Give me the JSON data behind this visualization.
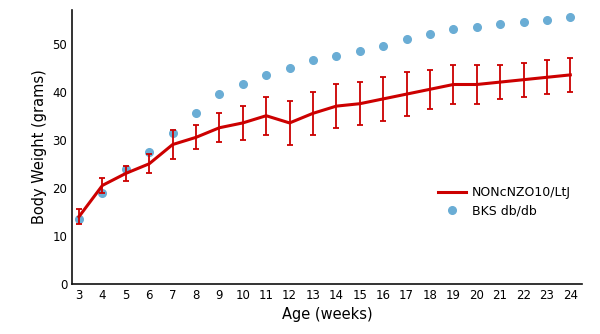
{
  "xlabel": "Age (weeks)",
  "ylabel": "Body Weight (grams)",
  "xlim": [
    2.7,
    24.5
  ],
  "ylim": [
    0,
    57
  ],
  "yticks": [
    0,
    10,
    20,
    30,
    40,
    50
  ],
  "xticks": [
    3,
    4,
    5,
    6,
    7,
    8,
    9,
    10,
    11,
    12,
    13,
    14,
    15,
    16,
    17,
    18,
    19,
    20,
    21,
    22,
    23,
    24
  ],
  "red_x": [
    3,
    4,
    5,
    6,
    7,
    8,
    9,
    10,
    11,
    12,
    13,
    14,
    15,
    16,
    17,
    18,
    19,
    20,
    21,
    22,
    23,
    24
  ],
  "red_y": [
    14.0,
    20.5,
    23.0,
    25.0,
    29.0,
    30.5,
    32.5,
    33.5,
    35.0,
    33.5,
    35.5,
    37.0,
    37.5,
    38.5,
    39.5,
    40.5,
    41.5,
    41.5,
    42.0,
    42.5,
    43.0,
    43.5
  ],
  "red_err_lower": [
    1.5,
    1.5,
    1.5,
    2.0,
    3.0,
    2.5,
    3.0,
    3.5,
    4.0,
    4.5,
    4.5,
    4.5,
    4.5,
    4.5,
    4.5,
    4.0,
    4.0,
    4.0,
    3.5,
    3.5,
    3.5,
    3.5
  ],
  "red_err_upper": [
    1.5,
    1.5,
    1.5,
    2.0,
    3.0,
    2.5,
    3.0,
    3.5,
    4.0,
    4.5,
    4.5,
    4.5,
    4.5,
    4.5,
    4.5,
    4.0,
    4.0,
    4.0,
    3.5,
    3.5,
    3.5,
    3.5
  ],
  "blue_x": [
    3,
    4,
    5,
    6,
    7,
    8,
    9,
    10,
    11,
    12,
    13,
    14,
    15,
    16,
    17,
    18,
    19,
    20,
    21,
    22,
    23,
    24
  ],
  "blue_y": [
    13.5,
    19.0,
    24.0,
    27.5,
    31.5,
    35.5,
    39.5,
    41.5,
    43.5,
    45.0,
    46.5,
    47.5,
    48.5,
    49.5,
    51.0,
    52.0,
    53.0,
    53.5,
    54.0,
    54.5,
    55.0,
    55.5
  ],
  "red_color": "#CC0000",
  "blue_color": "#6aadd5",
  "bg_color": "#ffffff",
  "legend_red_label": "NONcNZO10/LtJ",
  "legend_blue_label": "BKS db/db",
  "tick_label_fontsize": 8.5,
  "axis_label_fontsize": 10.5
}
